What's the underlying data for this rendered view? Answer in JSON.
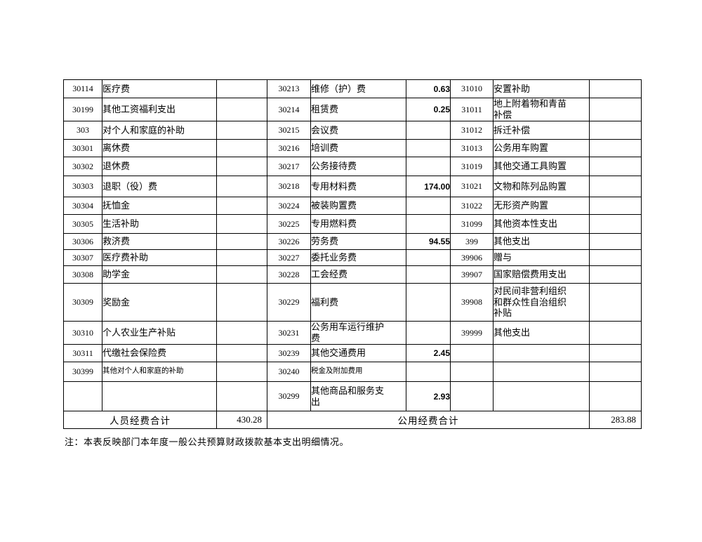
{
  "table": {
    "rows": [
      [
        {
          "code": "30114",
          "name": "医疗费",
          "value": ""
        },
        {
          "code": "30213",
          "name": "维修（护）费",
          "value": "0.63"
        },
        {
          "code": "31010",
          "name": "安置补助",
          "value": ""
        }
      ],
      [
        {
          "code": "30199",
          "name": "其他工资福利支出",
          "value": ""
        },
        {
          "code": "30214",
          "name": "租赁费",
          "value": "0.25"
        },
        {
          "code": "31011",
          "name": "地上附着物和青苗\n补偿",
          "value": ""
        }
      ],
      [
        {
          "code": "303",
          "name": "对个人和家庭的补助",
          "value": ""
        },
        {
          "code": "30215",
          "name": "会议费",
          "value": ""
        },
        {
          "code": "31012",
          "name": "拆迁补偿",
          "value": ""
        }
      ],
      [
        {
          "code": "30301",
          "name": "离休费",
          "value": ""
        },
        {
          "code": "30216",
          "name": "培训费",
          "value": ""
        },
        {
          "code": "31013",
          "name": "公务用车购置",
          "value": ""
        }
      ],
      [
        {
          "code": "30302",
          "name": "退休费",
          "value": ""
        },
        {
          "code": "30217",
          "name": "公务接待费",
          "value": ""
        },
        {
          "code": "31019",
          "name": "其他交通工具购置",
          "value": ""
        }
      ],
      [
        {
          "code": "30303",
          "name": "退职（役）费",
          "value": ""
        },
        {
          "code": "30218",
          "name": "专用材料费",
          "value": "174.00"
        },
        {
          "code": "31021",
          "name": "文物和陈列品购置",
          "value": ""
        }
      ],
      [
        {
          "code": "30304",
          "name": "抚恤金",
          "value": ""
        },
        {
          "code": "30224",
          "name": "被装购置费",
          "value": ""
        },
        {
          "code": "31022",
          "name": "无形资产购置",
          "value": ""
        }
      ],
      [
        {
          "code": "30305",
          "name": "生活补助",
          "value": ""
        },
        {
          "code": "30225",
          "name": "专用燃料费",
          "value": ""
        },
        {
          "code": "31099",
          "name": "其他资本性支出",
          "value": ""
        }
      ],
      [
        {
          "code": "30306",
          "name": "救济费",
          "value": ""
        },
        {
          "code": "30226",
          "name": "劳务费",
          "value": "94.55"
        },
        {
          "code": "399",
          "name": "其他支出",
          "value": ""
        }
      ],
      [
        {
          "code": "30307",
          "name": "医疗费补助",
          "value": ""
        },
        {
          "code": "30227",
          "name": "委托业务费",
          "value": ""
        },
        {
          "code": "39906",
          "name": "赠与",
          "value": ""
        }
      ],
      [
        {
          "code": "30308",
          "name": "助学金",
          "value": ""
        },
        {
          "code": "30228",
          "name": "工会经费",
          "value": ""
        },
        {
          "code": "39907",
          "name": "国家赔偿费用支出",
          "value": ""
        }
      ],
      [
        {
          "code": "30309",
          "name": "奖励金",
          "value": ""
        },
        {
          "code": "30229",
          "name": "福利费",
          "value": ""
        },
        {
          "code": "39908",
          "name": "对民间非营利组织\n和群众性自治组织\n补贴",
          "value": ""
        }
      ],
      [
        {
          "code": "30310",
          "name": "个人农业生产补贴",
          "value": ""
        },
        {
          "code": "30231",
          "name": "公务用车运行维护\n费",
          "value": ""
        },
        {
          "code": "39999",
          "name": "其他支出",
          "value": ""
        }
      ],
      [
        {
          "code": "30311",
          "name": "代缴社会保险费",
          "value": ""
        },
        {
          "code": "30239",
          "name": "其他交通费用",
          "value": "2.45"
        },
        {
          "code": "",
          "name": "",
          "value": ""
        }
      ],
      [
        {
          "code": "30399",
          "name": "其他对个人和家庭的补助",
          "value": ""
        },
        {
          "code": "30240",
          "name": "税金及附加费用",
          "value": ""
        },
        {
          "code": "",
          "name": "",
          "value": ""
        }
      ],
      [
        {
          "code": "",
          "name": "",
          "value": ""
        },
        {
          "code": "30299",
          "name": "其他商品和服务支\n出",
          "value": "2.93"
        },
        {
          "code": "",
          "name": "",
          "value": ""
        }
      ]
    ],
    "totals": {
      "personnel_label": "人员经费合计",
      "personnel_value": "430.28",
      "public_label": "公用经费合计",
      "public_value": "283.88"
    }
  },
  "footnote": "注：本表反映部门本年度一般公共预算财政拨款基本支出明细情况。"
}
